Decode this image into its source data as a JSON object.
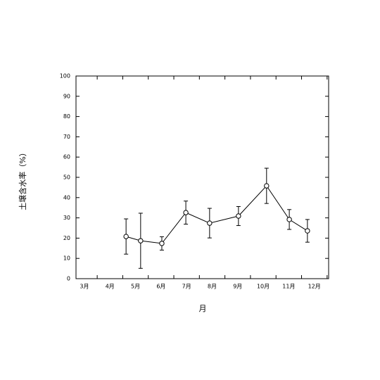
{
  "chart_data": {
    "type": "line",
    "x_label": "月",
    "y_label": "土壌含水率（%）",
    "xlim": [
      2.67,
      12.56
    ],
    "xticks": [
      {
        "value": 3,
        "label": "3月"
      },
      {
        "value": 4,
        "label": "4月"
      },
      {
        "value": 5,
        "label": "5月"
      },
      {
        "value": 6,
        "label": "6月"
      },
      {
        "value": 7,
        "label": "7月"
      },
      {
        "value": 8,
        "label": "8月"
      },
      {
        "value": 9,
        "label": "9月"
      },
      {
        "value": 10,
        "label": "10月"
      },
      {
        "value": 11,
        "label": "11月"
      },
      {
        "value": 12,
        "label": "12月"
      }
    ],
    "xminorticks": [
      3.5,
      4.5,
      5.5,
      6.5,
      7.5,
      8.5,
      9.5,
      10.5,
      11.5,
      12.5
    ],
    "ylim": [
      0,
      100
    ],
    "yticks": [
      0,
      10,
      20,
      30,
      40,
      50,
      60,
      70,
      80,
      90,
      100
    ],
    "grid": false,
    "series": [
      {
        "color": "#000000",
        "marker": "open-circle",
        "x": [
          4.63,
          5.2,
          6.03,
          6.97,
          7.9,
          9.03,
          10.13,
          11.02,
          11.73
        ],
        "values": [
          20.8,
          18.7,
          17.4,
          32.6,
          27.4,
          30.9,
          45.8,
          29.2,
          23.6
        ],
        "errors": [
          8.7,
          13.6,
          3.3,
          5.7,
          7.3,
          4.7,
          8.7,
          4.9,
          5.6
        ]
      }
    ]
  }
}
